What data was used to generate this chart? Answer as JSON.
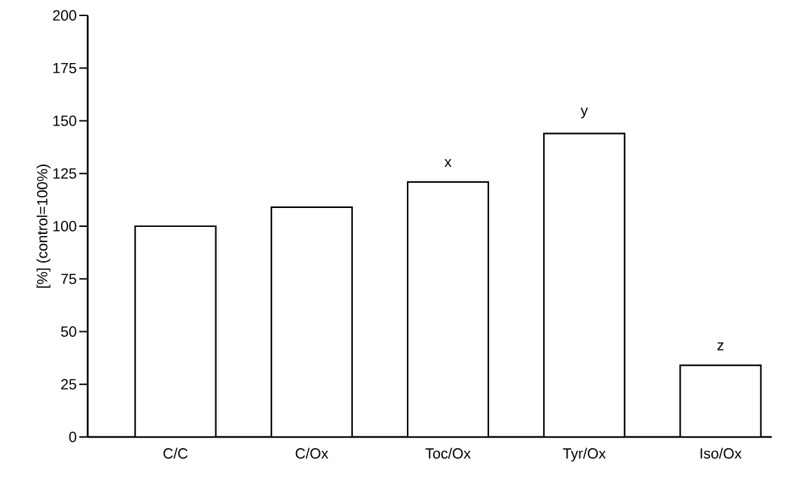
{
  "chart_data": {
    "type": "bar",
    "ylabel": "[%] (control=100%)",
    "categories": [
      "C/C",
      "C/Ox",
      "Toc/Ox",
      "Tyr/Ox",
      "Iso/Ox"
    ],
    "values": [
      100,
      109,
      121,
      144,
      34
    ],
    "color": "#ffffff",
    "ylim": [
      0,
      200
    ],
    "yticks": [
      0,
      25,
      50,
      75,
      100,
      125,
      150,
      175,
      200
    ],
    "grid": false,
    "annotations": [
      {
        "text": "x",
        "x": "Toc/Ox",
        "y": 121
      },
      {
        "text": "y",
        "x": "Tyr/Ox",
        "y": 144
      },
      {
        "text": "z",
        "x": "Iso/Ox",
        "y": 34
      }
    ]
  }
}
